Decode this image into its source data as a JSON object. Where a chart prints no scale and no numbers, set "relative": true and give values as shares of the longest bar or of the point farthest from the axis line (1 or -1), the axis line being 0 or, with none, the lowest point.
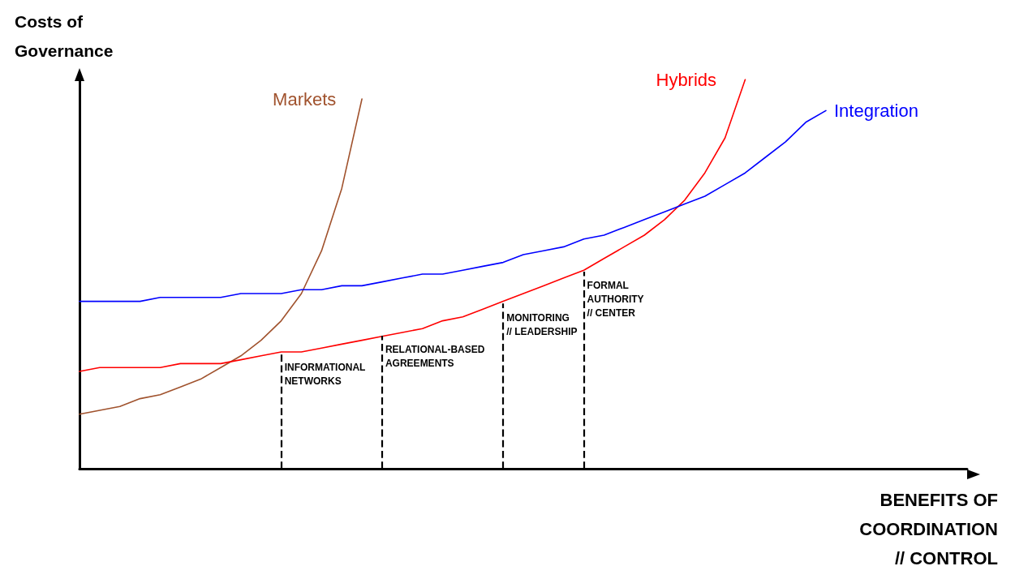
{
  "chart_data": {
    "type": "line",
    "relative": true,
    "ylabel": "Costs of\nGovernance",
    "xlabel": "BENEFITS OF\nCOORDINATION\n// CONTROL",
    "categories": [
      null,
      null,
      null,
      null,
      null,
      null,
      null,
      null,
      null,
      null,
      null,
      null,
      null,
      null,
      null,
      null,
      null,
      null,
      null,
      null,
      null,
      null,
      null,
      null,
      null,
      null,
      null,
      null,
      null,
      null,
      null,
      null,
      null,
      null,
      null,
      null,
      null,
      null,
      null,
      null,
      null,
      null,
      null,
      null,
      null
    ],
    "series": [
      {
        "name": "Markets",
        "color": "#a0522d",
        "values": [
          0.14,
          0.15,
          0.16,
          0.18,
          0.19,
          0.21,
          0.23,
          0.26,
          0.29,
          0.33,
          0.38,
          0.45,
          0.56,
          0.72,
          0.95,
          null,
          null,
          null,
          null,
          null,
          null,
          null,
          null,
          null,
          null,
          null,
          null,
          null,
          null,
          null,
          null,
          null,
          null,
          null,
          null,
          null,
          null,
          null,
          null,
          null,
          null,
          null,
          null,
          null,
          null
        ]
      },
      {
        "name": "Hybrids",
        "color": "#ff0000",
        "values": [
          0.25,
          0.26,
          0.26,
          0.26,
          0.26,
          0.27,
          0.27,
          0.27,
          0.28,
          0.29,
          0.3,
          0.3,
          0.31,
          0.32,
          0.33,
          0.34,
          0.35,
          0.36,
          0.38,
          0.39,
          0.41,
          0.43,
          0.45,
          0.47,
          0.49,
          0.51,
          0.54,
          0.57,
          0.6,
          0.64,
          0.69,
          0.76,
          0.85,
          1.0,
          null,
          null,
          null,
          null,
          null,
          null,
          null,
          null,
          null,
          null,
          null
        ]
      },
      {
        "name": "Integration",
        "color": "#0000ff",
        "values": [
          0.43,
          0.43,
          0.43,
          0.43,
          0.44,
          0.44,
          0.44,
          0.44,
          0.45,
          0.45,
          0.45,
          0.46,
          0.46,
          0.47,
          0.47,
          0.48,
          0.49,
          0.5,
          0.5,
          0.51,
          0.52,
          0.53,
          0.55,
          0.56,
          0.57,
          0.59,
          0.6,
          0.62,
          0.64,
          0.66,
          0.68,
          0.7,
          0.73,
          0.76,
          0.8,
          0.84,
          0.89,
          0.92,
          null,
          null,
          null,
          null,
          null,
          null,
          null
        ]
      }
    ],
    "annotations": [
      "INFORMATIONAL\nNETWORKS",
      "RELATIONAL-BASED\nAGREEMENTS",
      "MONITORING\n// LEADERSHIP",
      "FORMAL\nAUTHORITY\n// CENTER"
    ],
    "grid": false,
    "legend": false,
    "marker": "none",
    "line_style": "solid"
  }
}
